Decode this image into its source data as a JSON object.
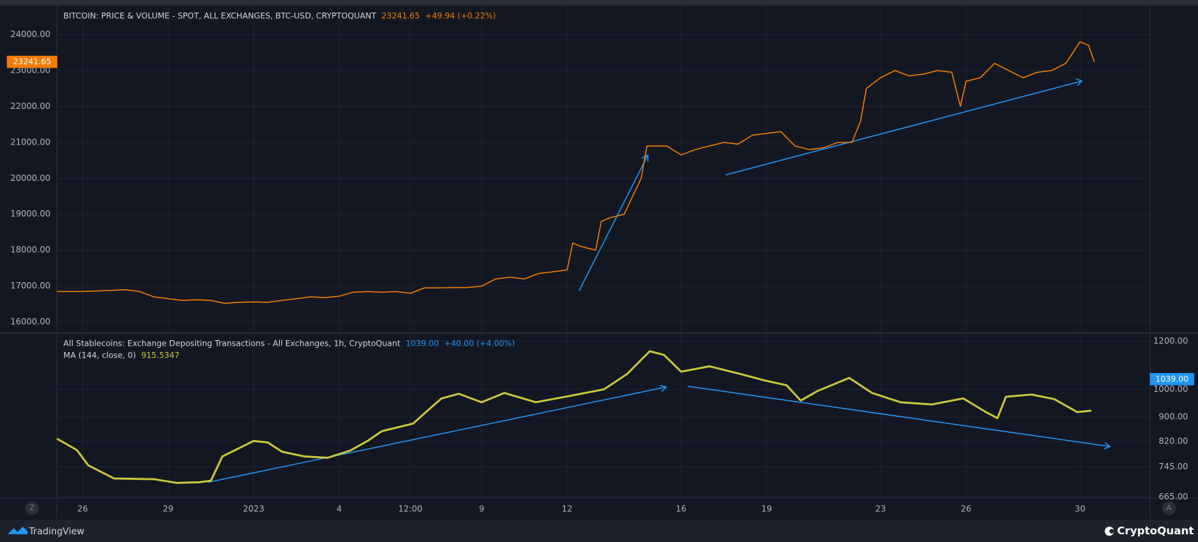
{
  "chart_data": [
    {
      "type": "line",
      "title": "BITCOIN: PRICE & VOLUME - SPOT, ALL EXCHANGES, BTC-USD, CRYPTOQUANT",
      "last_value": 23241.65,
      "change": "+49.94 (+0.22%)",
      "xlim": [
        -6.89,
        31.45
      ],
      "ylim": [
        15700,
        24790
      ],
      "yticks": [
        {
          "value": 16000,
          "label": "16000.00"
        },
        {
          "value": 17000,
          "label": "17000.00"
        },
        {
          "value": 18000,
          "label": "18000.00"
        },
        {
          "value": 19000,
          "label": "19000.00"
        },
        {
          "value": 20000,
          "label": "20000.00"
        },
        {
          "value": 21000,
          "label": "21000.00"
        },
        {
          "value": 22000,
          "label": "22000.00"
        },
        {
          "value": 23000,
          "label": "23000.00"
        },
        {
          "value": 24000,
          "label": "24000.00"
        }
      ],
      "grid": true,
      "series": [
        {
          "color": "#f57c00",
          "x": [
            -6.9,
            -6,
            -5,
            -4.5,
            -4,
            -3.5,
            -3,
            -2.5,
            -2,
            -1.5,
            -1,
            -0.5,
            0,
            0.5,
            1,
            1.5,
            2,
            2.5,
            3,
            3.5,
            4,
            4.5,
            5,
            5.5,
            6,
            6.5,
            7,
            7.5,
            8,
            8.5,
            9,
            9.5,
            10,
            10.5,
            11,
            11.2,
            11.5,
            12,
            12.2,
            12.5,
            13,
            13.3,
            13.6,
            13.8,
            14.5,
            15,
            15.5,
            16,
            16.5,
            17,
            17.5,
            18,
            18.5,
            19,
            19.5,
            20,
            20.5,
            21,
            21.3,
            21.5,
            22,
            22.5,
            23,
            23.5,
            24,
            24.5,
            24.8,
            25,
            25.5,
            26,
            26.5,
            27,
            27.5,
            28,
            28.5,
            29,
            29.3,
            29.5
          ],
          "values": [
            16850,
            16850,
            16880,
            16900,
            16850,
            16700,
            16650,
            16600,
            16620,
            16600,
            16520,
            16550,
            16560,
            16550,
            16600,
            16650,
            16700,
            16680,
            16720,
            16830,
            16850,
            16830,
            16850,
            16800,
            16950,
            16950,
            16960,
            16960,
            17000,
            17200,
            17250,
            17200,
            17350,
            17400,
            17450,
            18200,
            18100,
            18000,
            18800,
            18900,
            19000,
            19500,
            20000,
            20900,
            20900,
            20650,
            20800,
            20900,
            21000,
            20950,
            21200,
            21250,
            21300,
            20900,
            20800,
            20850,
            21000,
            21000,
            21600,
            22500,
            22800,
            23000,
            22850,
            22900,
            23000,
            22950,
            22000,
            22700,
            22800,
            23200,
            23000,
            22800,
            22950,
            23000,
            23200,
            23800,
            23700,
            23241.65
          ]
        }
      ]
    },
    {
      "type": "line",
      "title": "All Stablecoins: Exchange Depositing Transactions - All Exchanges, 1h, CryptoQuant",
      "last_value": {
        "value": 1039,
        "label": "1039.00"
      },
      "change": "+40.00 (+4.00%)",
      "log_scale": true,
      "xlim": [
        -6.89,
        31.45
      ],
      "ylim": [
        663,
        1235
      ],
      "yticks": [
        {
          "value": 665,
          "label": "665.00"
        },
        {
          "value": 745,
          "label": "745.00"
        },
        {
          "value": 820,
          "label": "820.00"
        },
        {
          "value": 900,
          "label": "900.00"
        },
        {
          "value": 1000,
          "label": "1000.00"
        },
        {
          "value": 1200,
          "label": "1200.00"
        }
      ],
      "xticks": [
        {
          "value": -6,
          "label": "26"
        },
        {
          "value": -3,
          "label": "29"
        },
        {
          "value": 0,
          "label": "2023"
        },
        {
          "value": 3,
          "label": "4"
        },
        {
          "value": 5.5,
          "label": "12:00"
        },
        {
          "value": 8,
          "label": "9"
        },
        {
          "value": 11,
          "label": "12"
        },
        {
          "value": 15,
          "label": "16"
        },
        {
          "value": 18,
          "label": "19"
        },
        {
          "value": 22,
          "label": "23"
        },
        {
          "value": 25,
          "label": "26"
        },
        {
          "value": 29,
          "label": "30"
        }
      ],
      "grid": true,
      "series": [
        {
          "name": "MA (144, close, 0)",
          "color": "#c9c73c",
          "last_value": 915.5347,
          "x": [
            -6.9,
            -6.2,
            -5.8,
            -4.9,
            -3.5,
            -2.7,
            -1.9,
            -1.5,
            -1.1,
            0,
            0.5,
            1.0,
            1.8,
            2.6,
            3.4,
            4.0,
            4.5,
            5.6,
            6.1,
            6.6,
            7.2,
            8.0,
            8.8,
            9.9,
            10.9,
            12.3,
            13.1,
            13.9,
            14.4,
            15.0,
            16.0,
            17.1,
            17.9,
            18.7,
            19.2,
            19.8,
            20.9,
            21.7,
            22.7,
            23.8,
            24.9,
            25.7,
            26.1,
            26.4,
            27.3,
            28.1,
            28.9,
            29.4
          ],
          "values": [
            829,
            794,
            749,
            713,
            711,
            701,
            703,
            707,
            775,
            822,
            817,
            789,
            775,
            771,
            793,
            822,
            853,
            878,
            922,
            966,
            983,
            952,
            986,
            952,
            971,
            1000,
            1059,
            1155,
            1139,
            1069,
            1091,
            1059,
            1035,
            1015,
            958,
            994,
            1044,
            986,
            952,
            944,
            966,
            917,
            896,
            972,
            980,
            963,
            917,
            922
          ]
        }
      ]
    }
  ],
  "buttons": [
    "Z",
    "A"
  ],
  "brand": "TradingView",
  "watermark": "CryptoQuant"
}
